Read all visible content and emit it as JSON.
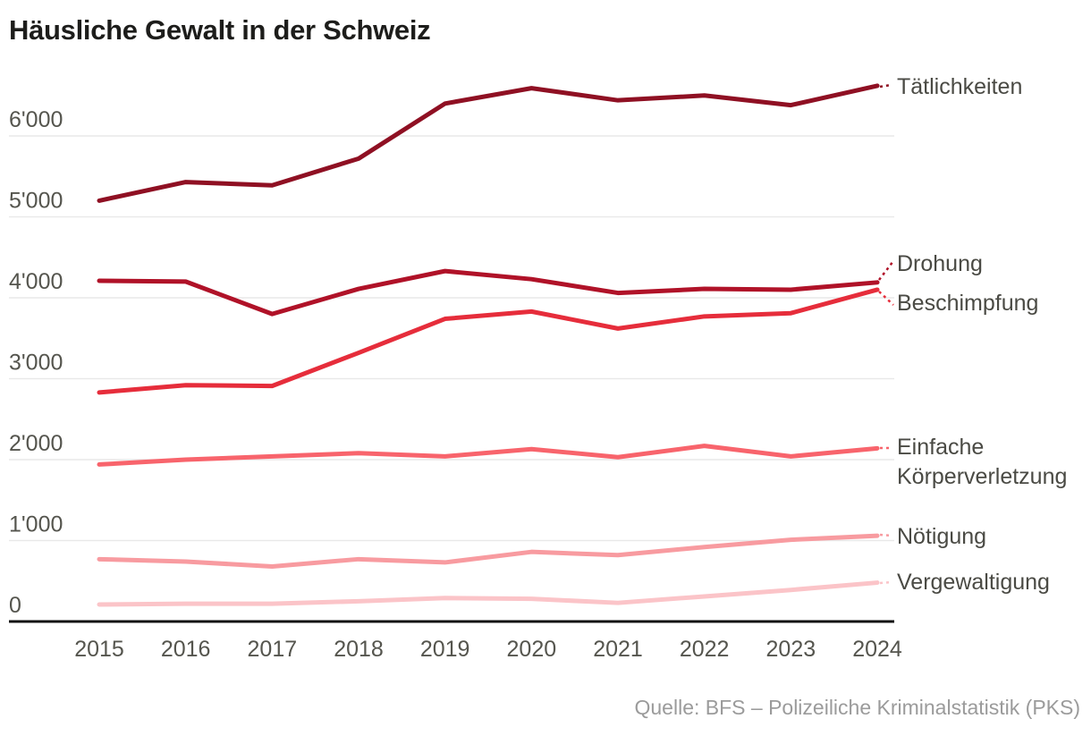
{
  "title": "Häusliche Gewalt in der Schweiz",
  "source": "Quelle: BFS – Polizeiliche Kriminalstatistik (PKS)",
  "chart_data": {
    "type": "line",
    "title": "Häusliche Gewalt in der Schweiz",
    "x": [
      2015,
      2016,
      2017,
      2018,
      2019,
      2020,
      2021,
      2022,
      2023,
      2024
    ],
    "x_tick_labels": [
      "2015",
      "2016",
      "2017",
      "2018",
      "2019",
      "2020",
      "2021",
      "2022",
      "2023",
      "2024"
    ],
    "y_ticks": [
      0,
      1000,
      2000,
      3000,
      4000,
      5000,
      6000
    ],
    "y_tick_labels": [
      "0",
      "1'000",
      "2'000",
      "3'000",
      "4'000",
      "5'000",
      "6'000"
    ],
    "ylim": [
      0,
      6800
    ],
    "grid": "horizontal-only",
    "legend_position": "right-inline-labels",
    "axis_color": "#111111",
    "grid_color": "#e9e9e9",
    "tick_label_color": "#55554e",
    "series": [
      {
        "name": "Tätlichkeiten",
        "color": "#8f1023",
        "values": [
          5200,
          5430,
          5390,
          5720,
          6400,
          6590,
          6440,
          6500,
          6380,
          6620
        ]
      },
      {
        "name": "Drohung",
        "color": "#b01228",
        "values": [
          4210,
          4200,
          3800,
          4110,
          4330,
          4230,
          4060,
          4110,
          4100,
          4190
        ]
      },
      {
        "name": "Beschimpfung",
        "color": "#e62d3b",
        "values": [
          2830,
          2920,
          2910,
          3320,
          3740,
          3830,
          3620,
          3770,
          3810,
          4100
        ]
      },
      {
        "name": "Einfache Körperverletzung",
        "color": "#f8646c",
        "values": [
          1940,
          2000,
          2040,
          2080,
          2040,
          2130,
          2030,
          2170,
          2040,
          2140
        ]
      },
      {
        "name": "Nötigung",
        "color": "#f89ba0",
        "values": [
          770,
          740,
          680,
          770,
          730,
          860,
          820,
          920,
          1010,
          1060
        ]
      },
      {
        "name": "Vergewaltigung",
        "color": "#fbc4c8",
        "values": [
          210,
          220,
          220,
          250,
          290,
          280,
          230,
          310,
          390,
          480
        ]
      }
    ]
  }
}
